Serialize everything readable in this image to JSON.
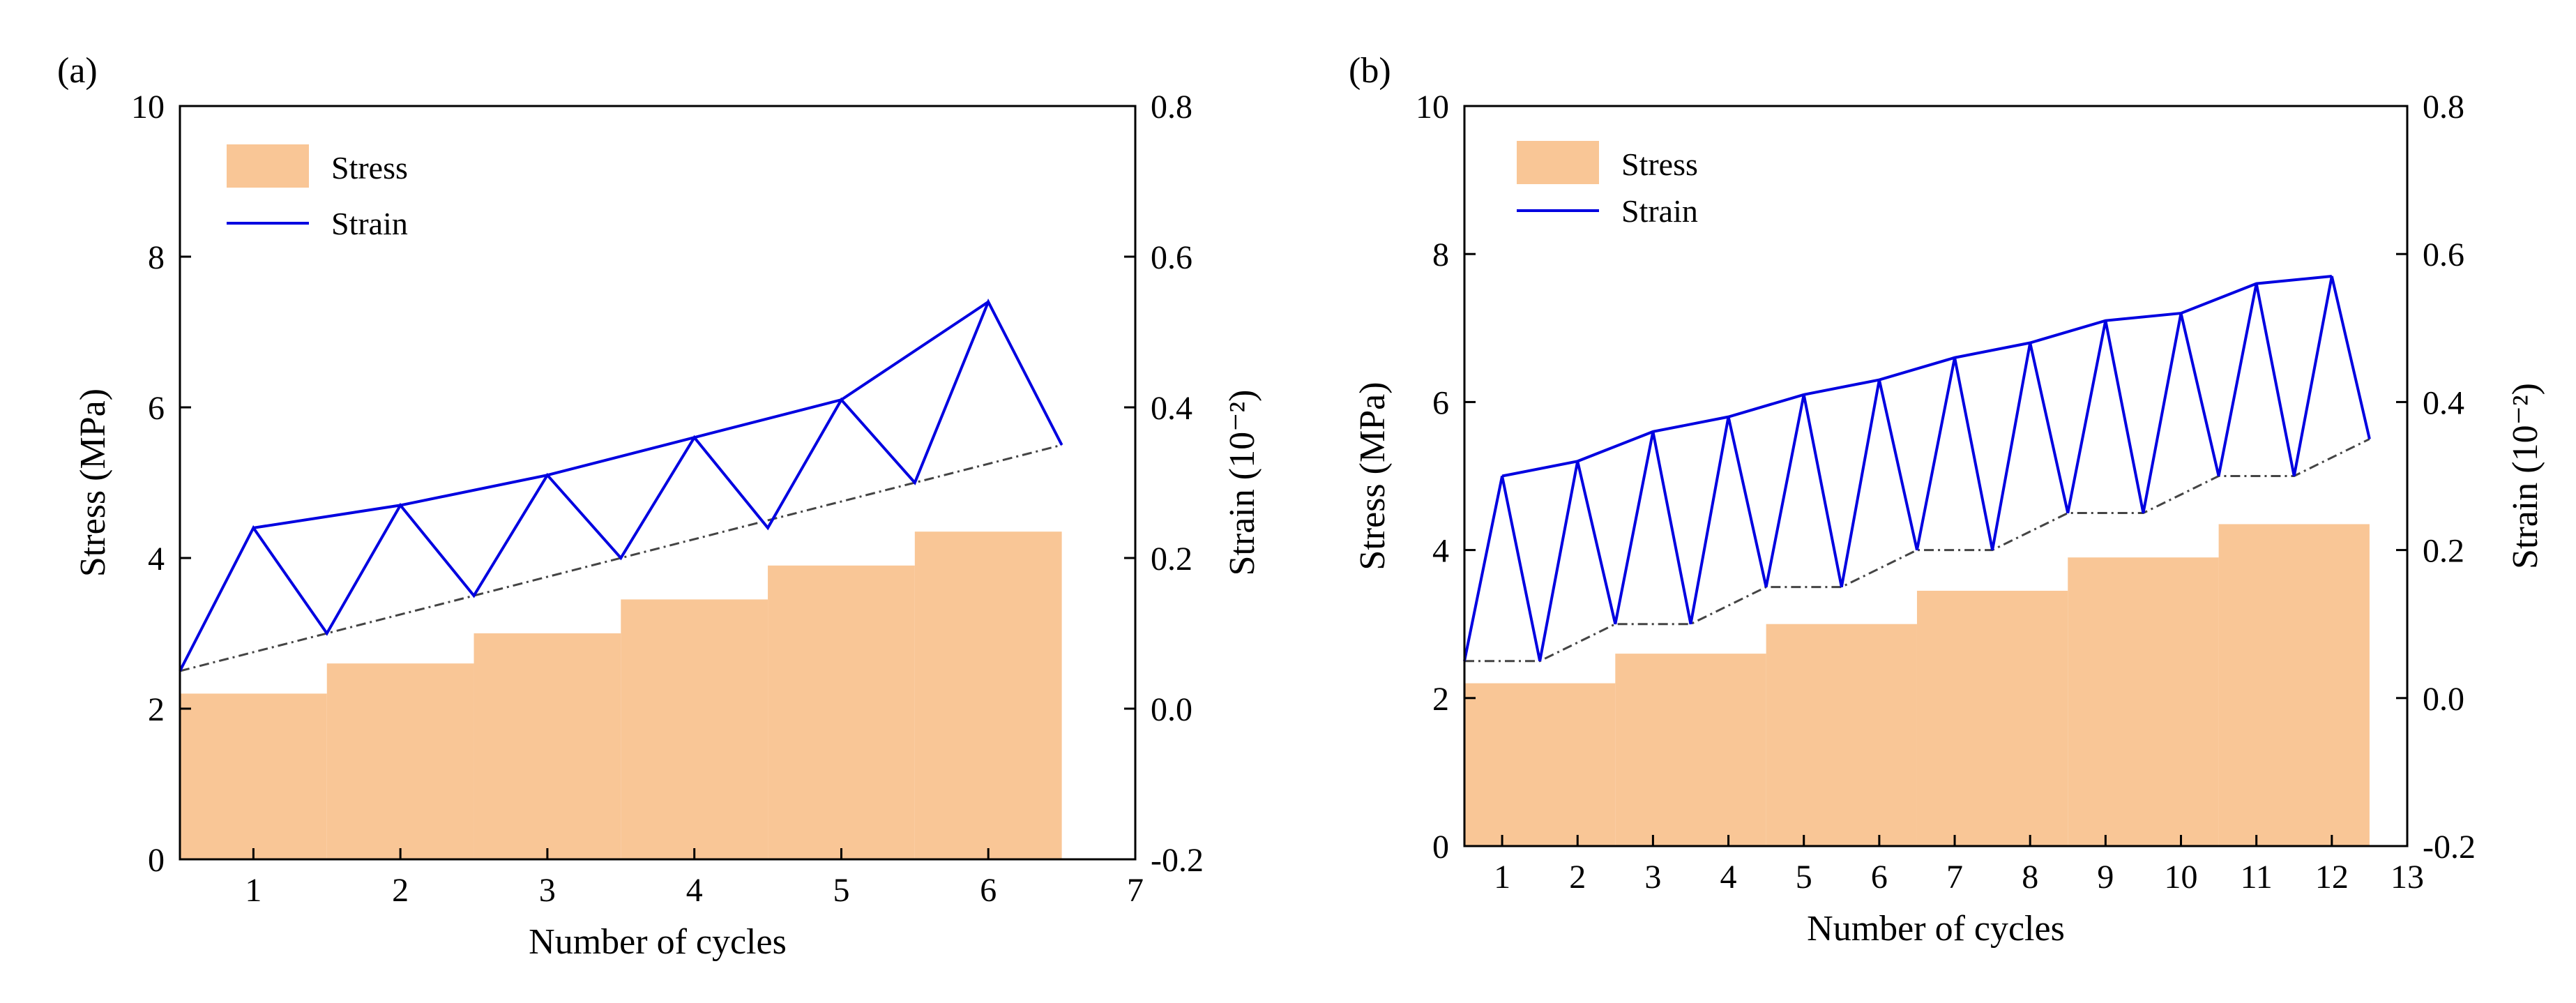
{
  "colors": {
    "stress_fill": "#F9C696",
    "strain_line": "#0000E0",
    "trend_line": "#444444",
    "axis": "#000000"
  },
  "chart_data": [
    {
      "panel_label": "(a)",
      "type": "bar",
      "xlabel": "Number of cycles",
      "ylabel_left": "Stress (MPa)",
      "ylabel_right": "Strain (10⁻²)",
      "xlim": [
        0.5,
        7
      ],
      "ylim_left": [
        0,
        10
      ],
      "ylim_right": [
        -0.2,
        0.8
      ],
      "x_ticks": [
        "1",
        "2",
        "3",
        "4",
        "5",
        "6",
        "7"
      ],
      "y_left_ticks": [
        "0",
        "2",
        "4",
        "6",
        "8",
        "10"
      ],
      "y_right_ticks": [
        "-0.2",
        "0.0",
        "0.2",
        "0.4",
        "0.6",
        "0.8"
      ],
      "legend": [
        "Stress",
        "Strain"
      ],
      "stress_steps": [
        {
          "x0": 0.5,
          "x1": 1.5,
          "value": 2.2
        },
        {
          "x0": 1.5,
          "x1": 2.5,
          "value": 2.6
        },
        {
          "x0": 2.5,
          "x1": 3.5,
          "value": 3.0
        },
        {
          "x0": 3.5,
          "x1": 4.5,
          "value": 3.45
        },
        {
          "x0": 4.5,
          "x1": 5.5,
          "value": 3.9
        },
        {
          "x0": 5.5,
          "x1": 6.5,
          "value": 4.35
        }
      ],
      "strain": {
        "x": [
          0.5,
          1,
          1.5,
          2,
          2.5,
          3,
          3.5,
          4,
          4.5,
          5,
          5.5,
          6,
          6.5
        ],
        "y": [
          0.05,
          0.24,
          0.1,
          0.27,
          0.15,
          0.31,
          0.2,
          0.36,
          0.24,
          0.41,
          0.3,
          0.54,
          0.35
        ]
      },
      "strain_envelope": {
        "x": [
          1,
          2,
          3,
          4,
          5,
          6
        ],
        "y": [
          0.24,
          0.27,
          0.31,
          0.36,
          0.41,
          0.54
        ]
      },
      "residual_trend": {
        "x": [
          0.5,
          6.5
        ],
        "y": [
          0.05,
          0.35
        ]
      }
    },
    {
      "panel_label": "(b)",
      "type": "bar",
      "xlabel": "Number of cycles",
      "ylabel_left": "Stress (MPa)",
      "ylabel_right": "Strain (10⁻²)",
      "xlim": [
        0.5,
        13
      ],
      "ylim_left": [
        0,
        10
      ],
      "ylim_right": [
        -0.2,
        0.8
      ],
      "x_ticks": [
        "1",
        "2",
        "3",
        "4",
        "5",
        "6",
        "7",
        "8",
        "9",
        "10",
        "11",
        "12",
        "13"
      ],
      "y_left_ticks": [
        "0",
        "2",
        "4",
        "6",
        "8",
        "10"
      ],
      "y_right_ticks": [
        "-0.2",
        "0.0",
        "0.2",
        "0.4",
        "0.6",
        "0.8"
      ],
      "legend": [
        "Stress",
        "Strain"
      ],
      "stress_steps": [
        {
          "x0": 0.5,
          "x1": 2.5,
          "value": 2.2
        },
        {
          "x0": 2.5,
          "x1": 4.5,
          "value": 2.6
        },
        {
          "x0": 4.5,
          "x1": 6.5,
          "value": 3.0
        },
        {
          "x0": 6.5,
          "x1": 8.5,
          "value": 3.45
        },
        {
          "x0": 8.5,
          "x1": 10.5,
          "value": 3.9
        },
        {
          "x0": 10.5,
          "x1": 12.5,
          "value": 4.35
        }
      ],
      "strain": {
        "x": [
          0.5,
          1,
          1.5,
          2,
          2.5,
          3,
          3.5,
          4,
          4.5,
          5,
          5.5,
          6,
          6.5,
          7,
          7.5,
          8,
          8.5,
          9,
          9.5,
          10,
          10.5,
          11,
          11.5,
          12,
          12.5
        ],
        "y": [
          0.05,
          0.3,
          0.05,
          0.32,
          0.1,
          0.36,
          0.1,
          0.38,
          0.15,
          0.41,
          0.15,
          0.43,
          0.2,
          0.46,
          0.2,
          0.48,
          0.25,
          0.51,
          0.25,
          0.52,
          0.3,
          0.56,
          0.3,
          0.57,
          0.35
        ]
      },
      "strain_envelope": {
        "x": [
          1,
          2,
          3,
          4,
          5,
          6,
          7,
          8,
          9,
          10,
          11,
          12
        ],
        "y": [
          0.3,
          0.32,
          0.36,
          0.38,
          0.41,
          0.43,
          0.46,
          0.48,
          0.51,
          0.52,
          0.56,
          0.57
        ]
      },
      "residual_trend": {
        "x": [
          0.5,
          1.5,
          2.5,
          3.5,
          4.5,
          5.5,
          6.5,
          7.5,
          8.5,
          9.5,
          10.5,
          11.5,
          12.5
        ],
        "y": [
          0.05,
          0.05,
          0.1,
          0.1,
          0.15,
          0.15,
          0.2,
          0.2,
          0.25,
          0.25,
          0.3,
          0.3,
          0.35
        ]
      }
    }
  ]
}
